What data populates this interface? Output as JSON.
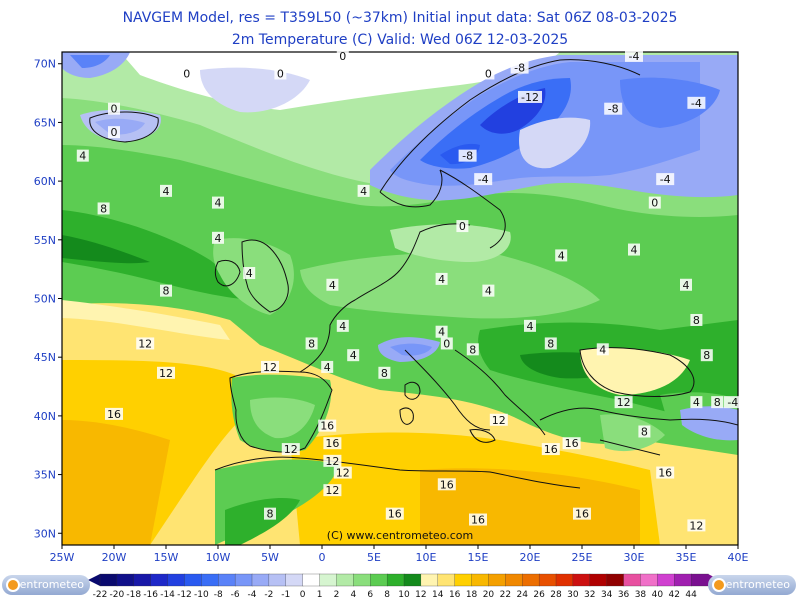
{
  "header": {
    "line1": "NAVGEM Model, res = T359L50 (~37km)    Initial input data: Sat 06Z 08-03-2025",
    "line2": "2m Temperature (C)  Valid: Wed 06Z 12-03-2025"
  },
  "map": {
    "lon_range": [
      -25,
      40
    ],
    "lat_range": [
      29,
      71
    ],
    "lon_ticks": [
      "25W",
      "20W",
      "15W",
      "10W",
      "5W",
      "0",
      "5E",
      "10E",
      "15E",
      "20E",
      "25E",
      "30E",
      "35E",
      "40E"
    ],
    "lat_ticks": [
      "70N",
      "65N",
      "60N",
      "55N",
      "50N",
      "45N",
      "40N",
      "35N",
      "30N"
    ],
    "watermark": "(C) www.centrometeo.com",
    "contour_labels": [
      {
        "text": "0",
        "lon": -13,
        "lat": 69
      },
      {
        "text": "0",
        "lon": -4,
        "lat": 69
      },
      {
        "text": "0",
        "lon": 2,
        "lat": 70.5
      },
      {
        "text": "0",
        "lon": 16,
        "lat": 69
      },
      {
        "text": "-8",
        "lon": 19,
        "lat": 69.5
      },
      {
        "text": "-4",
        "lon": 30,
        "lat": 70.5
      },
      {
        "text": "-12",
        "lon": 20,
        "lat": 67
      },
      {
        "text": "-8",
        "lon": 28,
        "lat": 66
      },
      {
        "text": "-4",
        "lon": 36,
        "lat": 66.5
      },
      {
        "text": "0",
        "lon": -20,
        "lat": 66
      },
      {
        "text": "0",
        "lon": -20,
        "lat": 64
      },
      {
        "text": "4",
        "lon": -23,
        "lat": 62
      },
      {
        "text": "-8",
        "lon": 14,
        "lat": 62
      },
      {
        "text": "-4",
        "lon": 15.5,
        "lat": 60
      },
      {
        "text": "-4",
        "lon": 33,
        "lat": 60
      },
      {
        "text": "0",
        "lon": 32,
        "lat": 58
      },
      {
        "text": "4",
        "lon": -15,
        "lat": 59
      },
      {
        "text": "4",
        "lon": 4,
        "lat": 59
      },
      {
        "text": "8",
        "lon": -21,
        "lat": 57.5
      },
      {
        "text": "4",
        "lon": -10,
        "lat": 58
      },
      {
        "text": "4",
        "lon": -10,
        "lat": 55
      },
      {
        "text": "0",
        "lon": 13.5,
        "lat": 56
      },
      {
        "text": "4",
        "lon": -7,
        "lat": 52
      },
      {
        "text": "4",
        "lon": 1,
        "lat": 51
      },
      {
        "text": "4",
        "lon": 11.5,
        "lat": 51.5
      },
      {
        "text": "4",
        "lon": 16,
        "lat": 50.5
      },
      {
        "text": "4",
        "lon": 23,
        "lat": 53.5
      },
      {
        "text": "4",
        "lon": 30,
        "lat": 54
      },
      {
        "text": "4",
        "lon": 35,
        "lat": 51
      },
      {
        "text": "8",
        "lon": -15,
        "lat": 50.5
      },
      {
        "text": "4",
        "lon": 2,
        "lat": 47.5
      },
      {
        "text": "4",
        "lon": 11.5,
        "lat": 47
      },
      {
        "text": "0",
        "lon": 12,
        "lat": 46
      },
      {
        "text": "4",
        "lon": 20,
        "lat": 47.5
      },
      {
        "text": "8",
        "lon": 36,
        "lat": 48
      },
      {
        "text": "12",
        "lon": -17,
        "lat": 46
      },
      {
        "text": "12",
        "lon": -15,
        "lat": 43.5
      },
      {
        "text": "8",
        "lon": -1,
        "lat": 46
      },
      {
        "text": "4",
        "lon": 3,
        "lat": 45
      },
      {
        "text": "8",
        "lon": 6,
        "lat": 43.5
      },
      {
        "text": "8",
        "lon": 14.5,
        "lat": 45.5
      },
      {
        "text": "8",
        "lon": 22,
        "lat": 46
      },
      {
        "text": "4",
        "lon": 27,
        "lat": 45.5
      },
      {
        "text": "8",
        "lon": 37,
        "lat": 45
      },
      {
        "text": "12",
        "lon": -5,
        "lat": 44
      },
      {
        "text": "4",
        "lon": 0.5,
        "lat": 44
      },
      {
        "text": "16",
        "lon": -20,
        "lat": 40
      },
      {
        "text": "12",
        "lon": 17,
        "lat": 39.5
      },
      {
        "text": "12",
        "lon": 29,
        "lat": 41
      },
      {
        "text": "4",
        "lon": 36,
        "lat": 41
      },
      {
        "text": "8",
        "lon": 38,
        "lat": 41
      },
      {
        "text": "-4",
        "lon": 39.5,
        "lat": 41
      },
      {
        "text": "16",
        "lon": 0.5,
        "lat": 39
      },
      {
        "text": "16",
        "lon": 1,
        "lat": 37.5
      },
      {
        "text": "12",
        "lon": -3,
        "lat": 37
      },
      {
        "text": "12",
        "lon": 1,
        "lat": 36
      },
      {
        "text": "12",
        "lon": 2,
        "lat": 35
      },
      {
        "text": "12",
        "lon": 1,
        "lat": 33.5
      },
      {
        "text": "16",
        "lon": 24,
        "lat": 37.5
      },
      {
        "text": "16",
        "lon": 22,
        "lat": 37
      },
      {
        "text": "16",
        "lon": 33,
        "lat": 35
      },
      {
        "text": "16",
        "lon": 12,
        "lat": 34
      },
      {
        "text": "16",
        "lon": 7,
        "lat": 31.5
      },
      {
        "text": "16",
        "lon": 15,
        "lat": 31
      },
      {
        "text": "16",
        "lon": 25,
        "lat": 31.5
      },
      {
        "text": "8",
        "lon": -5,
        "lat": 31.5
      },
      {
        "text": "12",
        "lon": 36,
        "lat": 30.5
      },
      {
        "text": "8",
        "lon": 31,
        "lat": 38.5
      }
    ]
  },
  "colorbar": {
    "labels": [
      "-22",
      "-20",
      "-18",
      "-16",
      "-14",
      "-12",
      "-10",
      "-8",
      "-6",
      "-4",
      "-2",
      "-1",
      "0",
      "1",
      "2",
      "4",
      "6",
      "8",
      "10",
      "12",
      "14",
      "16",
      "18",
      "20",
      "22",
      "24",
      "26",
      "28",
      "30",
      "32",
      "34",
      "36",
      "38",
      "40",
      "42",
      "44"
    ],
    "colors": [
      "#0a0a6e",
      "#10108a",
      "#1818a8",
      "#1e28c8",
      "#2240e0",
      "#2a5af0",
      "#3a6ef6",
      "#5a82f8",
      "#7896f8",
      "#98aaf6",
      "#b6c0f4",
      "#d4d8f6",
      "#ffffff",
      "#d6f5d0",
      "#b2eaa6",
      "#8ade7c",
      "#5ccc52",
      "#2eb02c",
      "#148a1c",
      "#fff4b0",
      "#ffe472",
      "#ffd000",
      "#f8b800",
      "#f4a000",
      "#f08800",
      "#ec6e00",
      "#e85000",
      "#e03000",
      "#cc1010",
      "#b00000",
      "#900000",
      "#e850a0",
      "#f070c8",
      "#d040d0",
      "#a020b0",
      "#7a1090"
    ],
    "left_logo": "centrometeo",
    "right_logo": "centrometeo"
  }
}
